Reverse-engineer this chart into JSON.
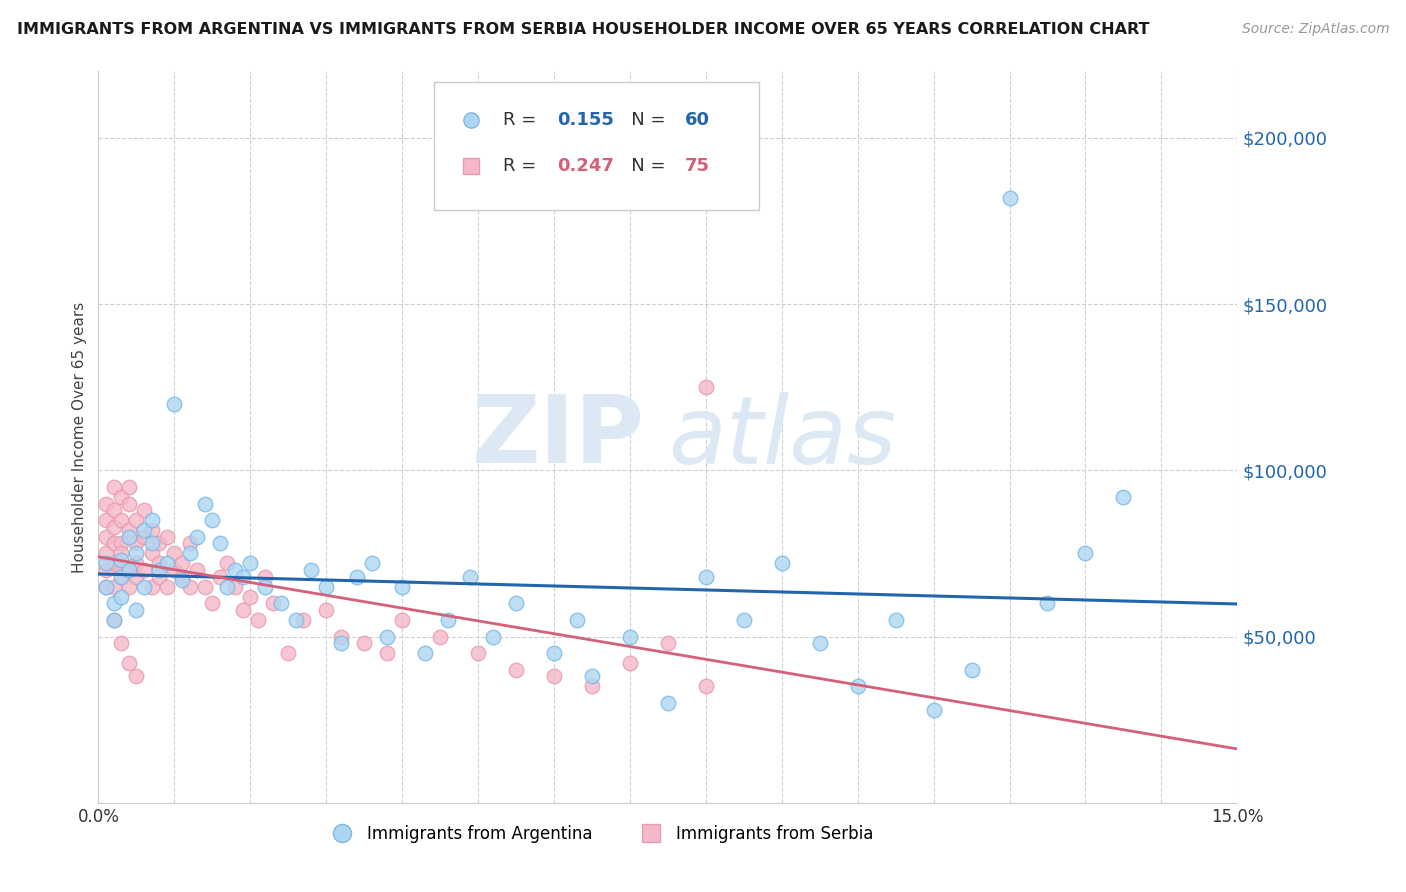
{
  "title": "IMMIGRANTS FROM ARGENTINA VS IMMIGRANTS FROM SERBIA HOUSEHOLDER INCOME OVER 65 YEARS CORRELATION CHART",
  "source": "Source: ZipAtlas.com",
  "ylabel": "Householder Income Over 65 years",
  "xlim": [
    0.0,
    0.15
  ],
  "ylim": [
    0,
    220000
  ],
  "yticks": [
    0,
    50000,
    100000,
    150000,
    200000
  ],
  "ytick_labels": [
    "",
    "$50,000",
    "$100,000",
    "$150,000",
    "$200,000"
  ],
  "argentina_color_edge": "#7ab8e8",
  "argentina_color_fill": "#aed6f1",
  "serbia_color_edge": "#e89ab0",
  "serbia_color_fill": "#f4b8c8",
  "argentina_line_color": "#2166ac",
  "serbia_line_color": "#d4607a",
  "R_argentina": 0.155,
  "N_argentina": 60,
  "R_serbia": 0.247,
  "N_serbia": 75,
  "legend_label_argentina": "Immigrants from Argentina",
  "legend_label_serbia": "Immigrants from Serbia",
  "background_color": "#ffffff",
  "grid_color": "#d0d0d0",
  "watermark_color": "#dce9f5",
  "argentina_x": [
    0.001,
    0.001,
    0.002,
    0.002,
    0.003,
    0.003,
    0.003,
    0.004,
    0.004,
    0.005,
    0.005,
    0.006,
    0.006,
    0.007,
    0.007,
    0.008,
    0.009,
    0.01,
    0.011,
    0.012,
    0.013,
    0.014,
    0.015,
    0.016,
    0.017,
    0.018,
    0.019,
    0.02,
    0.022,
    0.024,
    0.026,
    0.028,
    0.03,
    0.032,
    0.034,
    0.036,
    0.038,
    0.04,
    0.043,
    0.046,
    0.049,
    0.052,
    0.055,
    0.06,
    0.063,
    0.065,
    0.07,
    0.075,
    0.08,
    0.085,
    0.09,
    0.095,
    0.1,
    0.105,
    0.11,
    0.115,
    0.12,
    0.125,
    0.13,
    0.135
  ],
  "argentina_y": [
    65000,
    72000,
    60000,
    55000,
    68000,
    73000,
    62000,
    80000,
    70000,
    75000,
    58000,
    82000,
    65000,
    78000,
    85000,
    70000,
    72000,
    120000,
    67000,
    75000,
    80000,
    90000,
    85000,
    78000,
    65000,
    70000,
    68000,
    72000,
    65000,
    60000,
    55000,
    70000,
    65000,
    48000,
    68000,
    72000,
    50000,
    65000,
    45000,
    55000,
    68000,
    50000,
    60000,
    45000,
    55000,
    38000,
    50000,
    30000,
    68000,
    55000,
    72000,
    48000,
    35000,
    55000,
    28000,
    40000,
    182000,
    60000,
    75000,
    92000
  ],
  "serbia_x": [
    0.001,
    0.001,
    0.001,
    0.001,
    0.001,
    0.001,
    0.002,
    0.002,
    0.002,
    0.002,
    0.002,
    0.002,
    0.003,
    0.003,
    0.003,
    0.003,
    0.003,
    0.003,
    0.004,
    0.004,
    0.004,
    0.004,
    0.004,
    0.005,
    0.005,
    0.005,
    0.005,
    0.006,
    0.006,
    0.006,
    0.007,
    0.007,
    0.007,
    0.008,
    0.008,
    0.008,
    0.009,
    0.009,
    0.01,
    0.01,
    0.011,
    0.011,
    0.012,
    0.012,
    0.013,
    0.014,
    0.015,
    0.016,
    0.017,
    0.018,
    0.019,
    0.02,
    0.021,
    0.022,
    0.023,
    0.025,
    0.027,
    0.03,
    0.032,
    0.035,
    0.038,
    0.04,
    0.045,
    0.05,
    0.055,
    0.06,
    0.065,
    0.07,
    0.075,
    0.08,
    0.002,
    0.003,
    0.004,
    0.005,
    0.08
  ],
  "serbia_y": [
    70000,
    85000,
    75000,
    90000,
    65000,
    80000,
    88000,
    72000,
    78000,
    95000,
    65000,
    83000,
    92000,
    70000,
    85000,
    78000,
    68000,
    75000,
    90000,
    82000,
    95000,
    70000,
    65000,
    85000,
    78000,
    68000,
    72000,
    80000,
    70000,
    88000,
    75000,
    65000,
    82000,
    78000,
    68000,
    72000,
    65000,
    80000,
    70000,
    75000,
    68000,
    72000,
    65000,
    78000,
    70000,
    65000,
    60000,
    68000,
    72000,
    65000,
    58000,
    62000,
    55000,
    68000,
    60000,
    45000,
    55000,
    58000,
    50000,
    48000,
    45000,
    55000,
    50000,
    45000,
    40000,
    38000,
    35000,
    42000,
    48000,
    35000,
    55000,
    48000,
    42000,
    38000,
    125000
  ]
}
